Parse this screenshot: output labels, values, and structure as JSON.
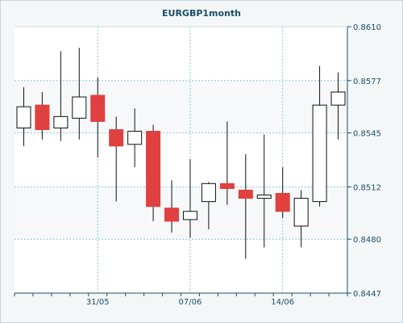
{
  "chart_data": {
    "type": "candlestick",
    "title": "EURGBP1month",
    "x_ticks": [
      {
        "label": "31/05",
        "index": 4
      },
      {
        "label": "07/06",
        "index": 9
      },
      {
        "label": "14/06",
        "index": 14
      }
    ],
    "y_ticks": [
      "0.8610",
      "0.8577",
      "0.8545",
      "0.8512",
      "0.8480",
      "0.8447"
    ],
    "ylim": [
      0.8447,
      0.861
    ],
    "grid": true,
    "colors": {
      "up_fill": "#ffffff",
      "down_fill": "#e04040",
      "wick": "#111111",
      "grid": "#8ccad6"
    },
    "candles": [
      {
        "open": 0.8548,
        "high": 0.8573,
        "low": 0.8537,
        "close": 0.8561
      },
      {
        "open": 0.8562,
        "high": 0.857,
        "low": 0.8541,
        "close": 0.8547
      },
      {
        "open": 0.8548,
        "high": 0.8595,
        "low": 0.854,
        "close": 0.8555
      },
      {
        "open": 0.8554,
        "high": 0.8597,
        "low": 0.8541,
        "close": 0.8567
      },
      {
        "open": 0.8568,
        "high": 0.8579,
        "low": 0.853,
        "close": 0.8552
      },
      {
        "open": 0.8547,
        "high": 0.8555,
        "low": 0.8503,
        "close": 0.8537
      },
      {
        "open": 0.8538,
        "high": 0.856,
        "low": 0.8524,
        "close": 0.8546
      },
      {
        "open": 0.8546,
        "high": 0.855,
        "low": 0.8491,
        "close": 0.85
      },
      {
        "open": 0.8499,
        "high": 0.8516,
        "low": 0.8484,
        "close": 0.8491
      },
      {
        "open": 0.8492,
        "high": 0.8529,
        "low": 0.8481,
        "close": 0.8497
      },
      {
        "open": 0.8503,
        "high": 0.8515,
        "low": 0.8486,
        "close": 0.8514
      },
      {
        "open": 0.8514,
        "high": 0.8552,
        "low": 0.8501,
        "close": 0.8511
      },
      {
        "open": 0.851,
        "high": 0.8532,
        "low": 0.8468,
        "close": 0.8505
      },
      {
        "open": 0.8505,
        "high": 0.8544,
        "low": 0.8475,
        "close": 0.8507
      },
      {
        "open": 0.8508,
        "high": 0.8524,
        "low": 0.8493,
        "close": 0.8497
      },
      {
        "open": 0.8488,
        "high": 0.851,
        "low": 0.8475,
        "close": 0.8505
      },
      {
        "open": 0.8503,
        "high": 0.8586,
        "low": 0.85,
        "close": 0.8562
      },
      {
        "open": 0.8562,
        "high": 0.8582,
        "low": 0.8541,
        "close": 0.857
      }
    ]
  }
}
